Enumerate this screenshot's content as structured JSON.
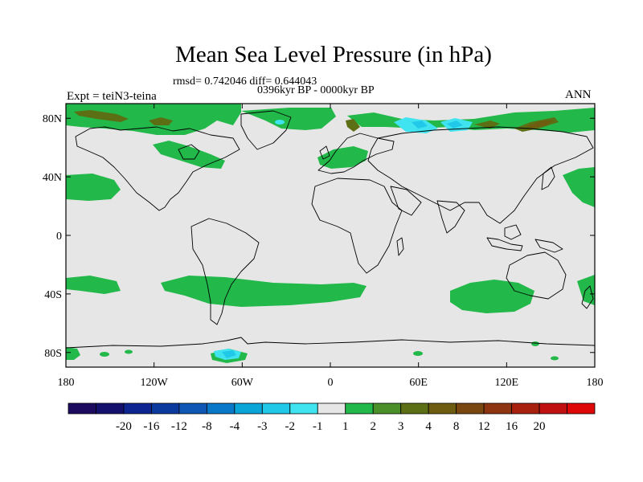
{
  "map": {
    "title": "Mean Sea Level Pressure (in hPa)",
    "stats": "rmsd= 0.742046 diff= 0.644043",
    "period": "0396kyr BP - 0000kyr BP",
    "experiment": "Expt = teiN3-teina",
    "season": "ANN",
    "projection": "cylindrical-equidistant",
    "lon_range": [
      -180,
      180
    ],
    "lat_range": [
      -90,
      90
    ],
    "lat_ticks": [
      {
        "value": 80,
        "label": "80N"
      },
      {
        "value": 40,
        "label": "40N"
      },
      {
        "value": 0,
        "label": "0"
      },
      {
        "value": -40,
        "label": "40S"
      },
      {
        "value": -80,
        "label": "80S"
      }
    ],
    "lon_ticks": [
      {
        "value": -180,
        "label": "180"
      },
      {
        "value": -120,
        "label": "120W"
      },
      {
        "value": -60,
        "label": "60W"
      },
      {
        "value": 0,
        "label": "0"
      },
      {
        "value": 60,
        "label": "60E"
      },
      {
        "value": 120,
        "label": "120E"
      },
      {
        "value": 180,
        "label": "180"
      }
    ],
    "background_color": "#e6e6e6",
    "coastline_color": "#000000"
  },
  "colorbar": {
    "colors": [
      "#1c0b5e",
      "#14106e",
      "#0d2590",
      "#0b3a9e",
      "#0e57b5",
      "#0a78c8",
      "#0aa5d8",
      "#22c8e8",
      "#40e4f0",
      "#e6e6e6",
      "#22b84a",
      "#4a8f28",
      "#5c6f14",
      "#6e5d10",
      "#7a4710",
      "#8e3410",
      "#a8200e",
      "#c01010",
      "#de0808"
    ],
    "labels": [
      "-20",
      "-16",
      "-12",
      "-8",
      "-4",
      "-3",
      "-2",
      "-1",
      "1",
      "2",
      "3",
      "4",
      "8",
      "12",
      "16",
      "20"
    ]
  }
}
